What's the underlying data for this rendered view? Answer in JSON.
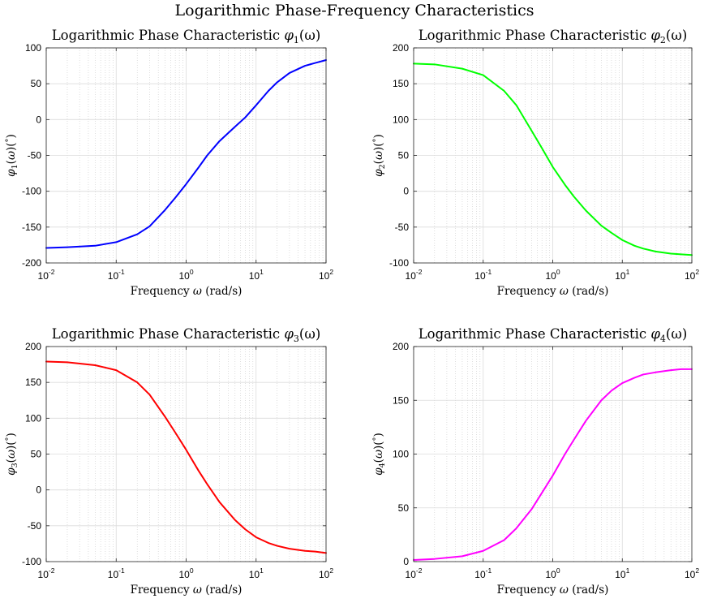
{
  "figure": {
    "title": "Logarithmic Phase-Frequency Characteristics"
  },
  "chart_data": [
    {
      "type": "line",
      "title": "Logarithmic Phase Characteristic φ1(ω)",
      "title_prefix": "Logarithmic Phase Characteristic ",
      "title_sym": "φ",
      "title_sub": "1",
      "title_arg": "(ω)",
      "xlabel": "Frequency ω (rad/s)",
      "xlabel_text": "Frequency ",
      "xlabel_sym": "ω",
      "xlabel_unit": " (rad/s)",
      "ylabel": "φ1(ω)(°)",
      "ylabel_sub": "1",
      "x_scale": "log",
      "xlim": [
        0.01,
        100
      ],
      "ylim": [
        -200,
        100
      ],
      "y_ticks": [
        -200,
        -150,
        -100,
        -50,
        0,
        50,
        100
      ],
      "x_ticks": [
        0.01,
        0.1,
        1,
        10,
        100
      ],
      "x_tick_exponents": [
        "-2",
        "-1",
        "0",
        "1",
        "2"
      ],
      "grid": true,
      "series": [
        {
          "color": "#0000ff",
          "x": [
            0.01,
            0.02,
            0.05,
            0.1,
            0.2,
            0.3,
            0.5,
            0.7,
            1,
            1.5,
            2,
            3,
            5,
            7,
            10,
            15,
            20,
            30,
            50,
            70,
            100
          ],
          "y": [
            -179,
            -178,
            -176,
            -171,
            -160,
            -149,
            -126,
            -109,
            -90,
            -67,
            -50,
            -30,
            -10,
            3,
            20,
            40,
            52,
            65,
            75,
            79,
            83
          ]
        }
      ]
    },
    {
      "type": "line",
      "title": "Logarithmic Phase Characteristic φ2(ω)",
      "title_prefix": "Logarithmic Phase Characteristic ",
      "title_sym": "φ",
      "title_sub": "2",
      "title_arg": "(ω)",
      "xlabel": "Frequency ω (rad/s)",
      "xlabel_text": "Frequency ",
      "xlabel_sym": "ω",
      "xlabel_unit": " (rad/s)",
      "ylabel": "φ2(ω)(°)",
      "ylabel_sub": "2",
      "x_scale": "log",
      "xlim": [
        0.01,
        100
      ],
      "ylim": [
        -100,
        200
      ],
      "y_ticks": [
        -100,
        -50,
        0,
        50,
        100,
        150,
        200
      ],
      "x_ticks": [
        0.01,
        0.1,
        1,
        10,
        100
      ],
      "x_tick_exponents": [
        "-2",
        "-1",
        "0",
        "1",
        "2"
      ],
      "grid": true,
      "series": [
        {
          "color": "#00ff00",
          "x": [
            0.01,
            0.02,
            0.05,
            0.1,
            0.2,
            0.3,
            0.5,
            0.7,
            1,
            1.5,
            2,
            3,
            5,
            7,
            10,
            15,
            20,
            30,
            50,
            70,
            100
          ],
          "y": [
            178,
            177,
            171,
            162,
            140,
            120,
            84,
            60,
            34,
            9,
            -7,
            -27,
            -48,
            -58,
            -68,
            -76,
            -80,
            -84,
            -87,
            -88,
            -89
          ]
        }
      ]
    },
    {
      "type": "line",
      "title": "Logarithmic Phase Characteristic φ3(ω)",
      "title_prefix": "Logarithmic Phase Characteristic ",
      "title_sym": "φ",
      "title_sub": "3",
      "title_arg": "(ω)",
      "xlabel": "Frequency ω (rad/s)",
      "xlabel_text": "Frequency ",
      "xlabel_sym": "ω",
      "xlabel_unit": " (rad/s)",
      "ylabel": "φ3(ω)(°)",
      "ylabel_sub": "3",
      "x_scale": "log",
      "xlim": [
        0.01,
        100
      ],
      "ylim": [
        -100,
        200
      ],
      "y_ticks": [
        -100,
        -50,
        0,
        50,
        100,
        150,
        200
      ],
      "x_ticks": [
        0.01,
        0.1,
        1,
        10,
        100
      ],
      "x_tick_exponents": [
        "-2",
        "-1",
        "0",
        "1",
        "2"
      ],
      "grid": true,
      "series": [
        {
          "color": "#ff0000",
          "x": [
            0.01,
            0.02,
            0.05,
            0.1,
            0.2,
            0.3,
            0.5,
            0.7,
            1,
            1.5,
            2,
            3,
            5,
            7,
            10,
            15,
            20,
            30,
            50,
            70,
            100
          ],
          "y": [
            179,
            178,
            174,
            167,
            150,
            133,
            102,
            80,
            56,
            27,
            8,
            -17,
            -42,
            -55,
            -66,
            -74,
            -78,
            -82,
            -85,
            -86,
            -88
          ]
        }
      ]
    },
    {
      "type": "line",
      "title": "Logarithmic Phase Characteristic φ4(ω)",
      "title_prefix": "Logarithmic Phase Characteristic ",
      "title_sym": "φ",
      "title_sub": "4",
      "title_arg": "(ω)",
      "xlabel": "Frequency ω (rad/s)",
      "xlabel_text": "Frequency ",
      "xlabel_sym": "ω",
      "xlabel_unit": " (rad/s)",
      "ylabel": "φ4(ω)(°)",
      "ylabel_sub": "4",
      "x_scale": "log",
      "xlim": [
        0.01,
        100
      ],
      "ylim": [
        0,
        200
      ],
      "y_ticks": [
        0,
        50,
        100,
        150,
        200
      ],
      "x_ticks": [
        0.01,
        0.1,
        1,
        10,
        100
      ],
      "x_tick_exponents": [
        "-2",
        "-1",
        "0",
        "1",
        "2"
      ],
      "grid": true,
      "series": [
        {
          "color": "#ff00ff",
          "x": [
            0.01,
            0.02,
            0.05,
            0.1,
            0.2,
            0.3,
            0.5,
            0.7,
            1,
            1.5,
            2,
            3,
            5,
            7,
            10,
            15,
            20,
            30,
            50,
            70,
            100
          ],
          "y": [
            1.5,
            2.5,
            5,
            10,
            20,
            31,
            49,
            64,
            80,
            100,
            113,
            131,
            150,
            159,
            166,
            171,
            174,
            176,
            178,
            179,
            179
          ]
        }
      ]
    }
  ]
}
